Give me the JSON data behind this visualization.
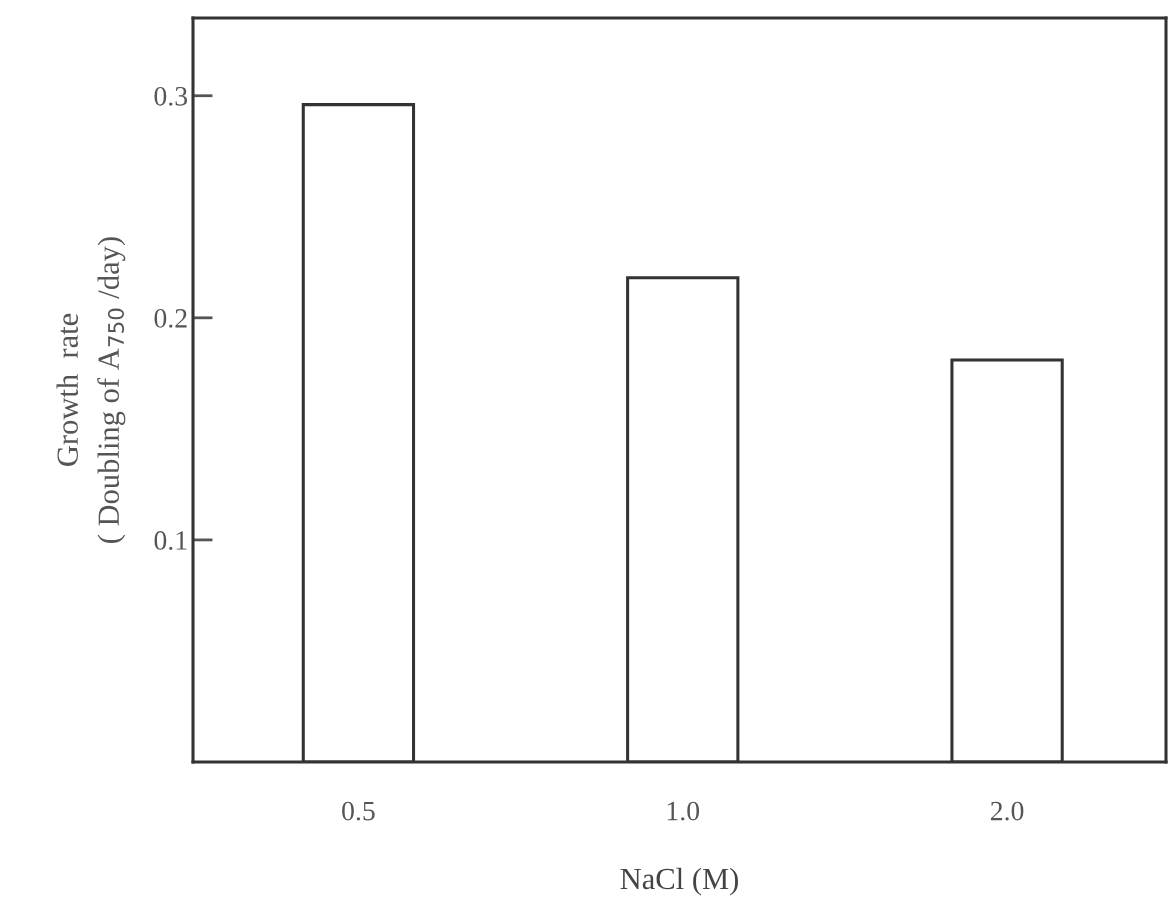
{
  "chart_data": {
    "type": "bar",
    "xlabel": "NaCl (M)",
    "ylabel": "Growth  rate\n( Doubling of A$_{750}$ /day)",
    "categories": [
      "0.5",
      "1.0",
      "2.0"
    ],
    "values": [
      0.296,
      0.218,
      0.181
    ],
    "color": "#ffffff",
    "ylim": [
      0,
      0.335
    ],
    "yticks": [
      0.1,
      0.2,
      0.3
    ],
    "grid": false
  }
}
